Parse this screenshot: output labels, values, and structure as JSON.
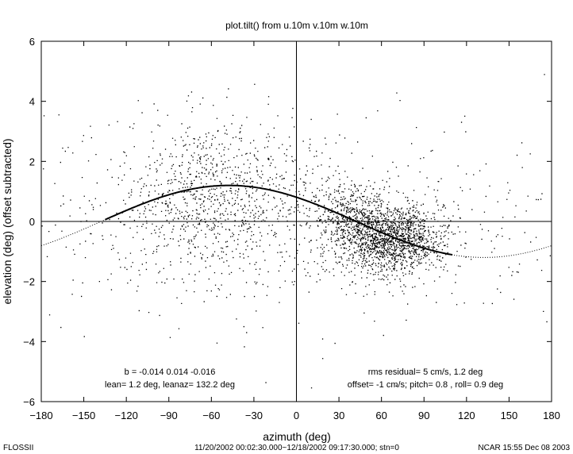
{
  "chart_data": {
    "type": "scatter",
    "title": "plot.tilt() from u.10m v.10m w.10m",
    "xlabel": "azimuth (deg)",
    "ylabel": "elevation (deg)  (offset subtracted)",
    "xlim": [
      -180,
      180
    ],
    "ylim": [
      -6,
      6
    ],
    "x_ticks": [
      "-180",
      "-150",
      "-120",
      "-90",
      "-60",
      "-30",
      "0",
      "30",
      "60",
      "90",
      "120",
      "150",
      "180"
    ],
    "y_ticks": [
      "6",
      "4",
      "2",
      "0",
      "-2",
      "-4",
      "-6"
    ],
    "grid": false,
    "zero_lines": true,
    "fit_curve": {
      "amplitude_deg": 1.2,
      "peak_azimuth_deg": -47.8,
      "offset_deg": 0,
      "solid_range": [
        -135,
        110
      ],
      "dotted_range": [
        -180,
        180
      ]
    },
    "scatter_clusters": [
      {
        "center_x": 68,
        "center_y": -0.6,
        "spread_x": 18,
        "spread_y": 0.55,
        "count": 1400
      },
      {
        "center_x": 40,
        "center_y": 0.1,
        "spread_x": 14,
        "spread_y": 0.6,
        "count": 500
      },
      {
        "center_x": -60,
        "center_y": 0.8,
        "spread_x": 35,
        "spread_y": 1.3,
        "count": 900
      },
      {
        "center_x": 0,
        "center_y": 0,
        "spread_x": 110,
        "spread_y": 1.8,
        "count": 650
      }
    ],
    "annotations_left": [
      "b = -0.014  0.014  -0.016",
      "lean= 1.2 deg, leanaz= 132.2 deg"
    ],
    "annotations_right": [
      "rms residual= 5 cm/s, 1.2 deg",
      "offset= -1 cm/s; pitch= 0.8 , roll= 0.9 deg"
    ]
  },
  "footer": {
    "left": "FLOSSII",
    "center": "11/20/2002 00:02:30.000~12/18/2002 09:17:30.000; stn=0",
    "right": "NCAR 15:55 Dec 08 2003"
  },
  "colors": {
    "ink": "#000000",
    "background": "#ffffff"
  }
}
